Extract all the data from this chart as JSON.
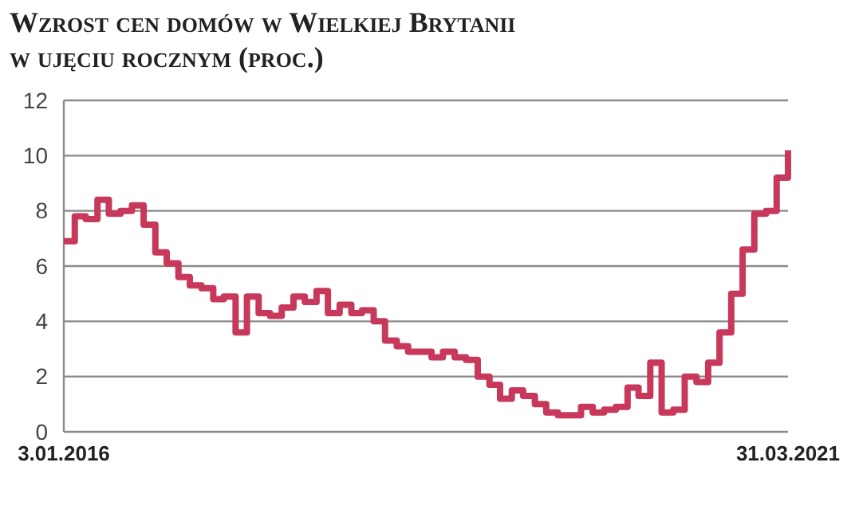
{
  "chart_data": {
    "type": "step",
    "title": "Wzrost cen domów w Wielkiej Brytanii w ujęciu rocznym (proc.)",
    "x": [
      "2016-01-03",
      "2016-02",
      "2016-03",
      "2016-04",
      "2016-05",
      "2016-06",
      "2016-07",
      "2016-08",
      "2016-09",
      "2016-10",
      "2016-11",
      "2016-12",
      "2017-01",
      "2017-02",
      "2017-03",
      "2017-04",
      "2017-05",
      "2017-06",
      "2017-07",
      "2017-08",
      "2017-09",
      "2017-10",
      "2017-11",
      "2017-12",
      "2018-01",
      "2018-02",
      "2018-03",
      "2018-04",
      "2018-05",
      "2018-06",
      "2018-07",
      "2018-08",
      "2018-09",
      "2018-10",
      "2018-11",
      "2018-12",
      "2019-01",
      "2019-02",
      "2019-03",
      "2019-04",
      "2019-05",
      "2019-06",
      "2019-07",
      "2019-08",
      "2019-09",
      "2019-10",
      "2019-11",
      "2019-12",
      "2020-01",
      "2020-02",
      "2020-03",
      "2020-04",
      "2020-05",
      "2020-06",
      "2020-07",
      "2020-08",
      "2020-09",
      "2020-10",
      "2020-11",
      "2020-12",
      "2021-01",
      "2021-02",
      "2021-03",
      "2021-03-31"
    ],
    "series": [
      {
        "color": "#c8385a",
        "values": [
          6.9,
          7.8,
          7.7,
          8.4,
          7.9,
          8.0,
          8.2,
          7.5,
          6.5,
          6.1,
          5.6,
          5.3,
          5.2,
          4.8,
          4.9,
          3.6,
          4.9,
          4.3,
          4.2,
          4.5,
          4.9,
          4.7,
          5.1,
          4.3,
          4.6,
          4.3,
          4.4,
          4.0,
          3.3,
          3.1,
          2.9,
          2.9,
          2.7,
          2.9,
          2.7,
          2.6,
          2.0,
          1.7,
          1.2,
          1.5,
          1.3,
          1.0,
          0.7,
          0.6,
          0.6,
          0.9,
          0.7,
          0.8,
          0.9,
          1.6,
          1.3,
          2.5,
          0.7,
          0.8,
          2.0,
          1.8,
          2.5,
          3.6,
          5.0,
          6.6,
          7.9,
          8.0,
          9.2,
          10.2
        ]
      }
    ],
    "xlim": [
      "2016-01-03",
      "2021-03-31"
    ],
    "xticks": [
      {
        "value": "2016-01-03",
        "label": "3.01.2016"
      },
      {
        "value": "2021-03-31",
        "label": "31.03.2021"
      }
    ],
    "ylim": [
      0,
      12
    ],
    "yticks": [
      0,
      2,
      4,
      6,
      8,
      10,
      12
    ],
    "grid": "y"
  }
}
